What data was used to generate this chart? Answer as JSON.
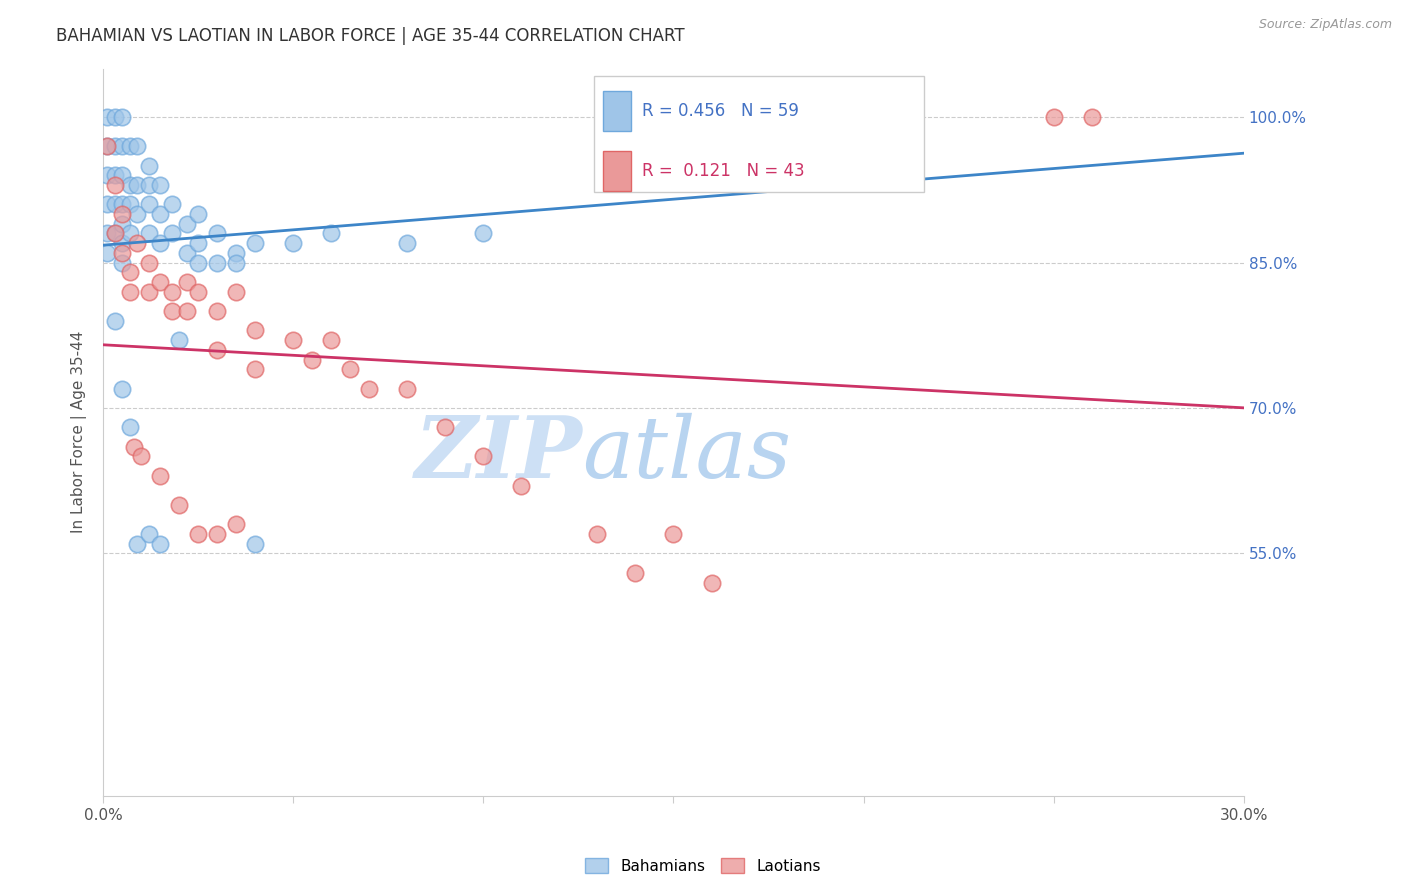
{
  "title": "BAHAMIAN VS LAOTIAN IN LABOR FORCE | AGE 35-44 CORRELATION CHART",
  "source_text": "Source: ZipAtlas.com",
  "ylabel": "In Labor Force | Age 35-44",
  "x_min": 0.0,
  "x_max": 0.3,
  "y_min": 0.3,
  "y_max": 1.05,
  "x_ticks": [
    0.0,
    0.05,
    0.1,
    0.15,
    0.2,
    0.25,
    0.3
  ],
  "y_ticks": [
    0.55,
    0.7,
    0.85,
    1.0
  ],
  "y_tick_labels": [
    "55.0%",
    "70.0%",
    "85.0%",
    "100.0%"
  ],
  "bahamian_color": "#9fc5e8",
  "bahamian_edge_color": "#6fa8dc",
  "laotian_color": "#ea9999",
  "laotian_edge_color": "#e06666",
  "trend_bahamian_color": "#3d85c8",
  "trend_laotian_color": "#cc3366",
  "watermark_zip": "ZIP",
  "watermark_atlas": "atlas",
  "watermark_zip_color": "#c9dff5",
  "watermark_atlas_color": "#b8d4f0",
  "background_color": "#ffffff",
  "bahamian_x": [
    0.001,
    0.001,
    0.001,
    0.001,
    0.001,
    0.001,
    0.003,
    0.003,
    0.003,
    0.003,
    0.003,
    0.005,
    0.005,
    0.005,
    0.005,
    0.005,
    0.005,
    0.005,
    0.007,
    0.007,
    0.007,
    0.007,
    0.009,
    0.009,
    0.009,
    0.012,
    0.012,
    0.012,
    0.012,
    0.015,
    0.015,
    0.015,
    0.018,
    0.018,
    0.022,
    0.022,
    0.025,
    0.025,
    0.03,
    0.035,
    0.04,
    0.05,
    0.06,
    0.08,
    0.1,
    0.15,
    0.16,
    0.003,
    0.005,
    0.007,
    0.009,
    0.012,
    0.015,
    0.02,
    0.025,
    0.03,
    0.035,
    0.04
  ],
  "bahamian_y": [
    1.0,
    0.97,
    0.94,
    0.91,
    0.88,
    0.86,
    1.0,
    0.97,
    0.94,
    0.91,
    0.88,
    1.0,
    0.97,
    0.94,
    0.91,
    0.89,
    0.87,
    0.85,
    0.97,
    0.93,
    0.91,
    0.88,
    0.97,
    0.93,
    0.9,
    0.95,
    0.93,
    0.91,
    0.88,
    0.93,
    0.9,
    0.87,
    0.91,
    0.88,
    0.89,
    0.86,
    0.9,
    0.87,
    0.88,
    0.86,
    0.87,
    0.87,
    0.88,
    0.87,
    0.88,
    1.0,
    1.0,
    0.79,
    0.72,
    0.68,
    0.56,
    0.57,
    0.56,
    0.77,
    0.85,
    0.85,
    0.85,
    0.56
  ],
  "laotian_x": [
    0.001,
    0.003,
    0.005,
    0.003,
    0.005,
    0.007,
    0.007,
    0.009,
    0.012,
    0.012,
    0.015,
    0.018,
    0.018,
    0.022,
    0.022,
    0.025,
    0.03,
    0.03,
    0.035,
    0.04,
    0.04,
    0.05,
    0.055,
    0.06,
    0.065,
    0.07,
    0.08,
    0.09,
    0.1,
    0.11,
    0.13,
    0.14,
    0.15,
    0.16,
    0.25,
    0.26,
    0.008,
    0.01,
    0.015,
    0.02,
    0.025,
    0.03,
    0.035
  ],
  "laotian_y": [
    0.97,
    0.93,
    0.9,
    0.88,
    0.86,
    0.84,
    0.82,
    0.87,
    0.85,
    0.82,
    0.83,
    0.82,
    0.8,
    0.83,
    0.8,
    0.82,
    0.8,
    0.76,
    0.82,
    0.78,
    0.74,
    0.77,
    0.75,
    0.77,
    0.74,
    0.72,
    0.72,
    0.68,
    0.65,
    0.62,
    0.57,
    0.53,
    0.57,
    0.52,
    1.0,
    1.0,
    0.66,
    0.65,
    0.63,
    0.6,
    0.57,
    0.57,
    0.58
  ]
}
